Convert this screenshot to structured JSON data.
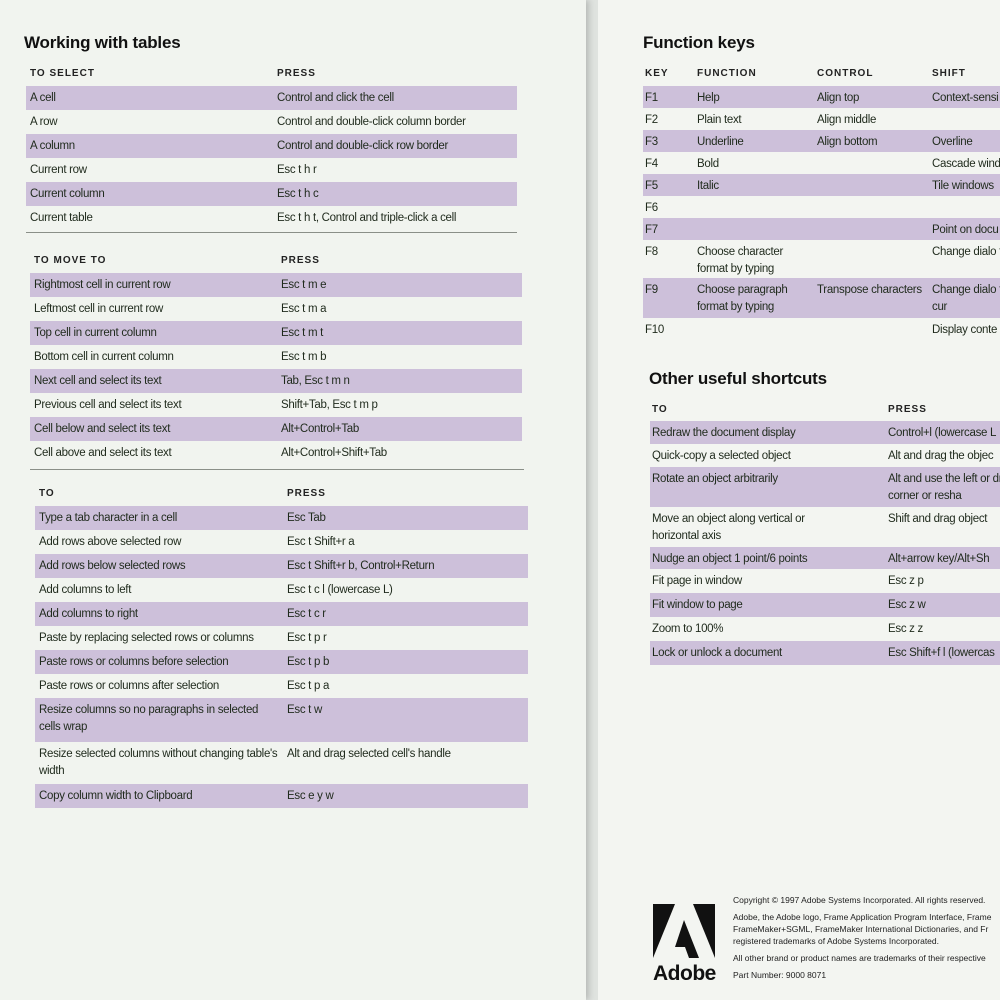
{
  "tables_page": {
    "title": "Working with tables",
    "select": {
      "headers": [
        "TO SELECT",
        "PRESS"
      ],
      "rows": [
        [
          "A cell",
          "Control and click the cell"
        ],
        [
          "A row",
          "Control and double-click column border"
        ],
        [
          "A column",
          "Control and double-click row border"
        ],
        [
          "Current row",
          "Esc t h r"
        ],
        [
          "Current column",
          "Esc t h c"
        ],
        [
          "Current table",
          "Esc t h t, Control and triple-click a cell"
        ]
      ]
    },
    "move": {
      "headers": [
        "TO MOVE TO",
        "PRESS"
      ],
      "rows": [
        [
          "Rightmost cell in current row",
          "Esc t m e"
        ],
        [
          "Leftmost cell in current row",
          "Esc t m a"
        ],
        [
          "Top cell in current column",
          "Esc t m t"
        ],
        [
          "Bottom cell in current column",
          "Esc t m b"
        ],
        [
          "Next cell and select its text",
          "Tab, Esc t m n"
        ],
        [
          "Previous cell and select its text",
          "Shift+Tab, Esc t m p"
        ],
        [
          "Cell below and select its text",
          "Alt+Control+Tab"
        ],
        [
          "Cell above and select its text",
          "Alt+Control+Shift+Tab"
        ]
      ]
    },
    "actions": {
      "headers": [
        "TO",
        "PRESS"
      ],
      "rows": [
        [
          "Type a tab character in a cell",
          "Esc Tab"
        ],
        [
          "Add rows above selected row",
          "Esc t Shift+r a"
        ],
        [
          "Add rows below selected rows",
          "Esc t Shift+r b, Control+Return"
        ],
        [
          "Add columns to left",
          "Esc t c l (lowercase L)"
        ],
        [
          "Add columns to right",
          "Esc t c r"
        ],
        [
          "Paste by replacing selected rows or columns",
          "Esc t p r"
        ],
        [
          "Paste rows or columns before selection",
          "Esc t p b"
        ],
        [
          "Paste rows or columns after selection",
          "Esc t p a"
        ],
        [
          "Resize columns so no paragraphs in selected cells wrap",
          "Esc t w"
        ],
        [
          "Resize selected columns without changing table's width",
          "Alt and drag selected cell's handle"
        ],
        [
          "Copy column width to Clipboard",
          "Esc e y w"
        ]
      ]
    }
  },
  "function_keys": {
    "title": "Function keys",
    "headers": [
      "KEY",
      "FUNCTION",
      "CONTROL",
      "SHIFT"
    ],
    "rows": [
      [
        "F1",
        "Help",
        "Align top",
        "Context-sensi"
      ],
      [
        "F2",
        "Plain text",
        "Align middle",
        ""
      ],
      [
        "F3",
        "Underline",
        "Align bottom",
        "Overline"
      ],
      [
        "F4",
        "Bold",
        "",
        "Cascade wind"
      ],
      [
        "F5",
        "Italic",
        "",
        "Tile windows"
      ],
      [
        "F6",
        "",
        "",
        ""
      ],
      [
        "F7",
        "",
        "",
        "Point on docu"
      ],
      [
        "F8",
        "Choose character format by typing",
        "",
        "Change dialo to As Is"
      ],
      [
        "F9",
        "Choose paragraph format by typing",
        "Transpose characters",
        "Change dialo to match cur"
      ],
      [
        "F10",
        "",
        "",
        "Display conte"
      ]
    ]
  },
  "other_shortcuts": {
    "title": "Other useful shortcuts",
    "headers": [
      "TO",
      "PRESS"
    ],
    "rows": [
      [
        "Redraw the document display",
        "Control+l (lowercase L"
      ],
      [
        "Quick-copy a selected object",
        "Alt and drag the objec"
      ],
      [
        "Rotate an object arbitrarily",
        "Alt and use the left or drag a corner or resha"
      ],
      [
        "Move an object along vertical or horizontal axis",
        "Shift and drag object"
      ],
      [
        "Nudge an object 1 point/6 points",
        "Alt+arrow key/Alt+Sh"
      ],
      [
        "Fit page in window",
        "Esc z p"
      ],
      [
        "Fit window to page",
        "Esc z w"
      ],
      [
        "Zoom to 100%",
        "Esc z z"
      ],
      [
        "Lock or unlock a document",
        "Esc Shift+f l (lowercas"
      ]
    ]
  },
  "footer": {
    "logo_text": "Adobe",
    "copyright": "Copyright © 1997 Adobe Systems Incorporated. All rights reserved.",
    "trademarks_1": "Adobe, the Adobe logo, Frame Application Program Interface, Frame",
    "trademarks_2": "FrameMaker+SGML, FrameMaker International Dictionaries, and Fr",
    "trademarks_3": "registered trademarks of Adobe Systems Incorporated.",
    "other_brands": "All other brand or product names are trademarks of their respective",
    "part_number": "Part Number: 9000 8071"
  },
  "colors": {
    "row_stripe": "#cdc0da",
    "paper": "#f1f4ef",
    "text": "#1f2a1c"
  }
}
